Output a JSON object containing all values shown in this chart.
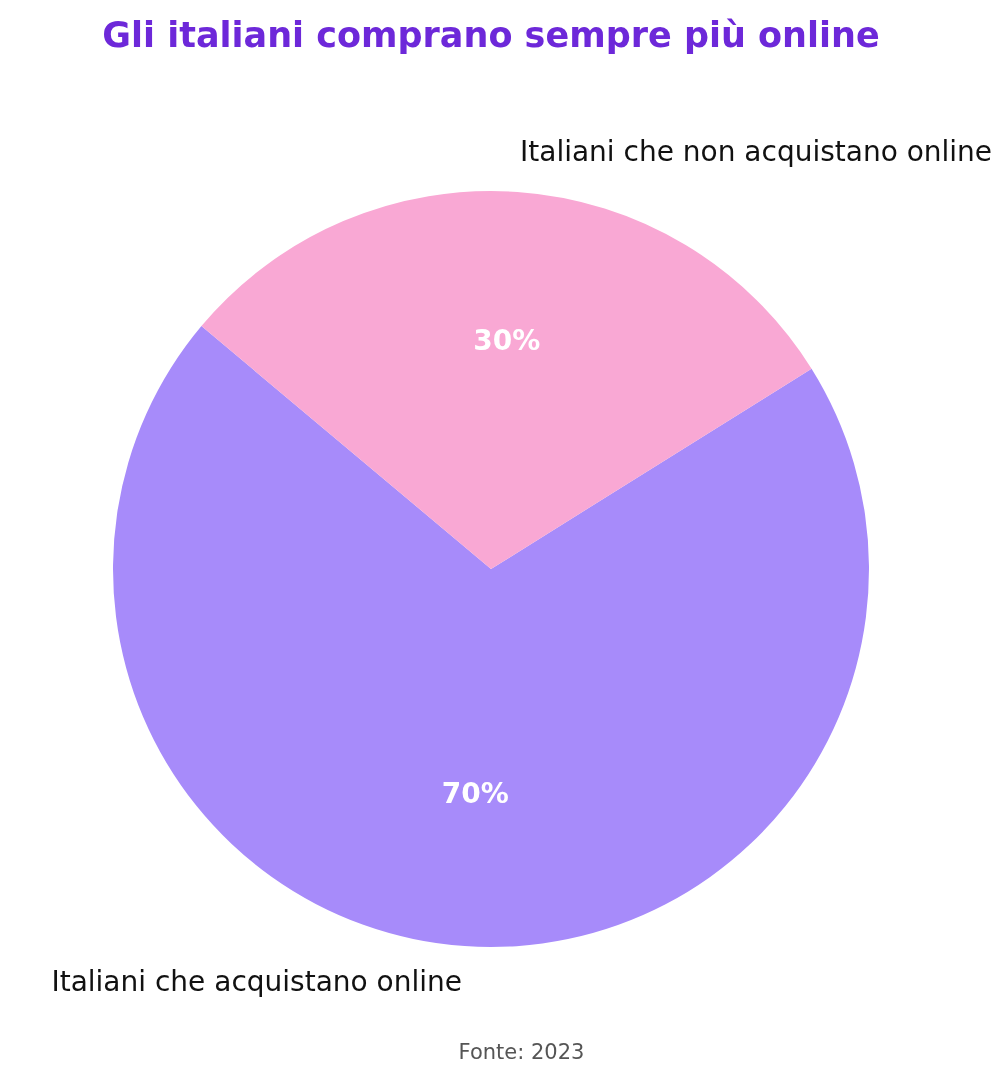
{
  "chart_data": {
    "type": "pie",
    "title": "Gli italiani comprano sempre più online",
    "categories": [
      "Italiani che acquistano online",
      "Italiani che non acquistano online"
    ],
    "values": [
      70,
      30
    ],
    "colors": [
      "#a78bfa",
      "#f9a8d4"
    ],
    "value_labels": [
      "70%",
      "30%"
    ],
    "annotations": [
      "Fonte: 2023"
    ]
  }
}
